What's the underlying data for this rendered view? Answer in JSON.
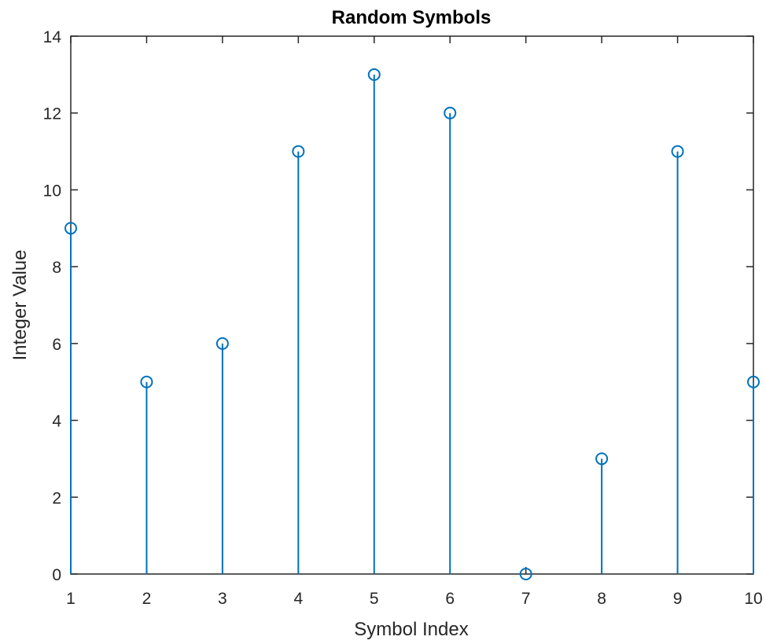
{
  "chart_data": {
    "type": "stem",
    "title": "Random Symbols",
    "xlabel": "Symbol Index",
    "ylabel": "Integer Value",
    "x": [
      1,
      2,
      3,
      4,
      5,
      6,
      7,
      8,
      9,
      10
    ],
    "values": [
      9,
      5,
      6,
      11,
      13,
      12,
      0,
      3,
      11,
      5
    ],
    "xlim": [
      1,
      10
    ],
    "ylim": [
      0,
      14
    ],
    "xticks": [
      "1",
      "2",
      "3",
      "4",
      "5",
      "6",
      "7",
      "8",
      "9",
      "10"
    ],
    "yticks": [
      "0",
      "2",
      "4",
      "6",
      "8",
      "10",
      "12",
      "14"
    ],
    "grid": false,
    "marker": "circle",
    "series_color": "#0072BD",
    "axes_color": "#262626"
  }
}
